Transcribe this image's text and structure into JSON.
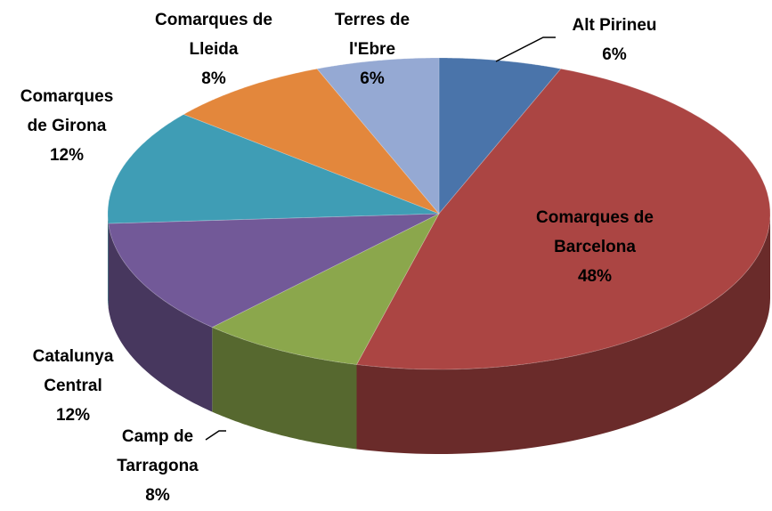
{
  "chart_data": {
    "type": "pie3d",
    "categories": [
      "Alt Pirineu",
      "Comarques de Barcelona",
      "Camp de Tarragona",
      "Catalunya Central",
      "Comarques de Girona",
      "Comarques de Lleida",
      "Terres de l'Ebre"
    ],
    "values": [
      6,
      48,
      8,
      12,
      12,
      8,
      6
    ],
    "value_labels": [
      "6%",
      "48%",
      "8%",
      "12%",
      "12%",
      "8%",
      "6%"
    ],
    "colors": [
      "#4a74aa",
      "#ab4543",
      "#8ba74c",
      "#725998",
      "#3f9db5",
      "#e3873c",
      "#95a9d3"
    ]
  }
}
